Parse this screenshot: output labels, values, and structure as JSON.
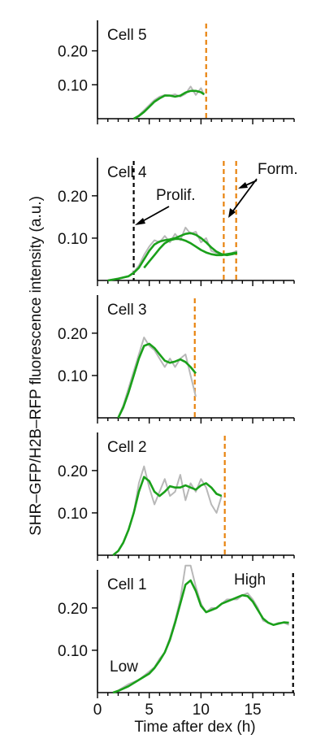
{
  "chart_data": {
    "type": "line",
    "ylabel": "SHR–GFP/H2B–RFP fluorescence intensity (a.u.)",
    "xlabel": "Time after dex (h)",
    "xlim": [
      0,
      19
    ],
    "x_ticks": [
      0,
      5,
      10,
      15
    ],
    "x_tick_labels": [
      "0",
      "5",
      "10",
      "15"
    ],
    "ylim": [
      0,
      0.29
    ],
    "y_ticks": [
      0.1,
      0.2
    ],
    "y_tick_labels": [
      "0.10",
      "0.20"
    ],
    "colors": {
      "raw": "#b8b8b8",
      "smoothed": "#1aa01a",
      "formation": "#e8820c",
      "proliferation": "#000000"
    },
    "panels": [
      {
        "title": "Cell 5",
        "series": [
          {
            "kind": "raw",
            "x": [
              3.5,
              4,
              4.5,
              5,
              5.5,
              6,
              6.5,
              7,
              7.5,
              8,
              8.5,
              9,
              9.5,
              10,
              10.3
            ],
            "y": [
              0,
              0.01,
              0.025,
              0.04,
              0.055,
              0.065,
              0.07,
              0.068,
              0.072,
              0.065,
              0.073,
              0.095,
              0.07,
              0.09,
              0.07
            ]
          },
          {
            "kind": "smoothed",
            "x": [
              3.5,
              4,
              4.5,
              5,
              5.5,
              6,
              6.5,
              7,
              7.5,
              8,
              8.5,
              9,
              9.5,
              10,
              10.3
            ],
            "y": [
              0,
              0.008,
              0.02,
              0.035,
              0.05,
              0.06,
              0.068,
              0.068,
              0.065,
              0.068,
              0.077,
              0.082,
              0.082,
              0.078,
              0.072
            ]
          }
        ],
        "vlines": [
          {
            "x": 10.5,
            "kind": "formation"
          }
        ],
        "annotations": []
      },
      {
        "title": "Cell 4",
        "series": [
          {
            "kind": "raw",
            "x": [
              1,
              2,
              3,
              3.5,
              4,
              4.5,
              5,
              5.5,
              6,
              6.5,
              7,
              7.5,
              8,
              8.5,
              9,
              9.5,
              10,
              10.5,
              11,
              11.5,
              12,
              12.5,
              13,
              13.5
            ],
            "y": [
              0,
              0.005,
              0.01,
              0.02,
              0.035,
              0.06,
              0.08,
              0.095,
              0.09,
              0.105,
              0.09,
              0.11,
              0.095,
              0.125,
              0.11,
              0.115,
              0.09,
              0.1,
              0.07,
              0.065,
              0.06,
              0.06,
              0.065,
              0.07
            ]
          },
          {
            "kind": "smoothed",
            "x": [
              1,
              2,
              3,
              3.5,
              4,
              4.5,
              5,
              5.5,
              6,
              6.5,
              7,
              7.5,
              8,
              8.5,
              9,
              9.5,
              10,
              10.5,
              11,
              11.5,
              12,
              12.5,
              13,
              13.5
            ],
            "y": [
              0,
              0.004,
              0.01,
              0.018,
              0.03,
              0.05,
              0.07,
              0.085,
              0.092,
              0.095,
              0.097,
              0.1,
              0.105,
              0.11,
              0.112,
              0.108,
              0.1,
              0.09,
              0.078,
              0.068,
              0.062,
              0.06,
              0.062,
              0.065
            ]
          },
          {
            "kind": "smoothed",
            "x": [
              4.5,
              5,
              5.5,
              6,
              6.5,
              7,
              7.5,
              8,
              8.5,
              9,
              9.5,
              10,
              10.5,
              11,
              11.5,
              12,
              12.5,
              13,
              13.5
            ],
            "y": [
              0.03,
              0.045,
              0.06,
              0.075,
              0.088,
              0.095,
              0.098,
              0.098,
              0.094,
              0.088,
              0.08,
              0.072,
              0.066,
              0.062,
              0.06,
              0.06,
              0.062,
              0.064,
              0.066
            ]
          }
        ],
        "vlines": [
          {
            "x": 3.5,
            "kind": "proliferation"
          },
          {
            "x": 12.2,
            "kind": "formation"
          },
          {
            "x": 13.4,
            "kind": "formation"
          }
        ],
        "annotations": [
          {
            "text": "Prolif."
          },
          {
            "text": "Form."
          }
        ]
      },
      {
        "title": "Cell 3",
        "series": [
          {
            "kind": "raw",
            "x": [
              2,
              2.5,
              3,
              3.5,
              4,
              4.5,
              5,
              5.5,
              6,
              6.5,
              7,
              7.5,
              8,
              8.5,
              9,
              9.5
            ],
            "y": [
              0,
              0.03,
              0.07,
              0.11,
              0.15,
              0.19,
              0.17,
              0.16,
              0.14,
              0.12,
              0.14,
              0.12,
              0.14,
              0.15,
              0.1,
              0.05
            ]
          },
          {
            "kind": "smoothed",
            "x": [
              2,
              2.5,
              3,
              3.5,
              4,
              4.5,
              5,
              5.5,
              6,
              6.5,
              7,
              7.5,
              8,
              8.5,
              9,
              9.5
            ],
            "y": [
              0,
              0.025,
              0.06,
              0.1,
              0.14,
              0.17,
              0.175,
              0.165,
              0.15,
              0.135,
              0.13,
              0.133,
              0.138,
              0.132,
              0.12,
              0.105
            ]
          }
        ],
        "vlines": [
          {
            "x": 9.4,
            "kind": "formation"
          }
        ],
        "annotations": []
      },
      {
        "title": "Cell 2",
        "series": [
          {
            "kind": "raw",
            "x": [
              1.5,
              2,
              2.5,
              3,
              3.5,
              4,
              4.5,
              5,
              5.5,
              6,
              6.5,
              7,
              7.5,
              8,
              8.5,
              9,
              9.5,
              10,
              10.5,
              11,
              11.5,
              12
            ],
            "y": [
              0,
              0.01,
              0.03,
              0.06,
              0.1,
              0.17,
              0.21,
              0.16,
              0.12,
              0.15,
              0.18,
              0.14,
              0.15,
              0.19,
              0.13,
              0.17,
              0.15,
              0.18,
              0.16,
              0.12,
              0.1,
              0.14
            ]
          },
          {
            "kind": "smoothed",
            "x": [
              1.5,
              2,
              2.5,
              3,
              3.5,
              4,
              4.5,
              5,
              5.5,
              6,
              6.5,
              7,
              7.5,
              8,
              8.5,
              9,
              9.5,
              10,
              10.5,
              11,
              11.5,
              12
            ],
            "y": [
              0,
              0.01,
              0.03,
              0.06,
              0.1,
              0.15,
              0.185,
              0.175,
              0.15,
              0.14,
              0.15,
              0.163,
              0.16,
              0.16,
              0.165,
              0.16,
              0.155,
              0.165,
              0.17,
              0.16,
              0.145,
              0.14
            ]
          }
        ],
        "vlines": [
          {
            "x": 12.3,
            "kind": "formation"
          }
        ],
        "annotations": []
      },
      {
        "title": "Cell 1",
        "series": [
          {
            "kind": "raw",
            "x": [
              1.5,
              2,
              3,
              4,
              5,
              5.5,
              6,
              6.5,
              7,
              7.5,
              8,
              8.5,
              9,
              9.5,
              10,
              10.5,
              11,
              11.5,
              12,
              12.5,
              13,
              13.5,
              14,
              14.5,
              15,
              15.5,
              16,
              16.5,
              17,
              17.5,
              18,
              18.5
            ],
            "y": [
              0,
              0.005,
              0.02,
              0.03,
              0.05,
              0.06,
              0.08,
              0.095,
              0.13,
              0.17,
              0.22,
              0.3,
              0.3,
              0.25,
              0.21,
              0.19,
              0.2,
              0.2,
              0.21,
              0.22,
              0.22,
              0.22,
              0.23,
              0.235,
              0.22,
              0.2,
              0.17,
              0.165,
              0.16,
              0.165,
              0.165,
              0.16
            ]
          },
          {
            "kind": "smoothed",
            "x": [
              1.5,
              2,
              3,
              4,
              5,
              5.5,
              6,
              6.5,
              7,
              7.5,
              8,
              8.5,
              9,
              9.5,
              10,
              10.5,
              11,
              11.5,
              12,
              12.5,
              13,
              13.5,
              14,
              14.5,
              15,
              15.5,
              16,
              16.5,
              17,
              17.5,
              18,
              18.5
            ],
            "y": [
              0,
              0.004,
              0.015,
              0.03,
              0.045,
              0.058,
              0.075,
              0.095,
              0.125,
              0.165,
              0.21,
              0.255,
              0.265,
              0.24,
              0.205,
              0.19,
              0.195,
              0.2,
              0.21,
              0.215,
              0.22,
              0.225,
              0.23,
              0.228,
              0.215,
              0.195,
              0.175,
              0.165,
              0.16,
              0.163,
              0.166,
              0.165
            ]
          }
        ],
        "vlines": [
          {
            "x": 18.9,
            "kind": "proliferation"
          }
        ],
        "annotations": [
          {
            "text": "High"
          },
          {
            "text": "Low"
          }
        ]
      }
    ]
  }
}
